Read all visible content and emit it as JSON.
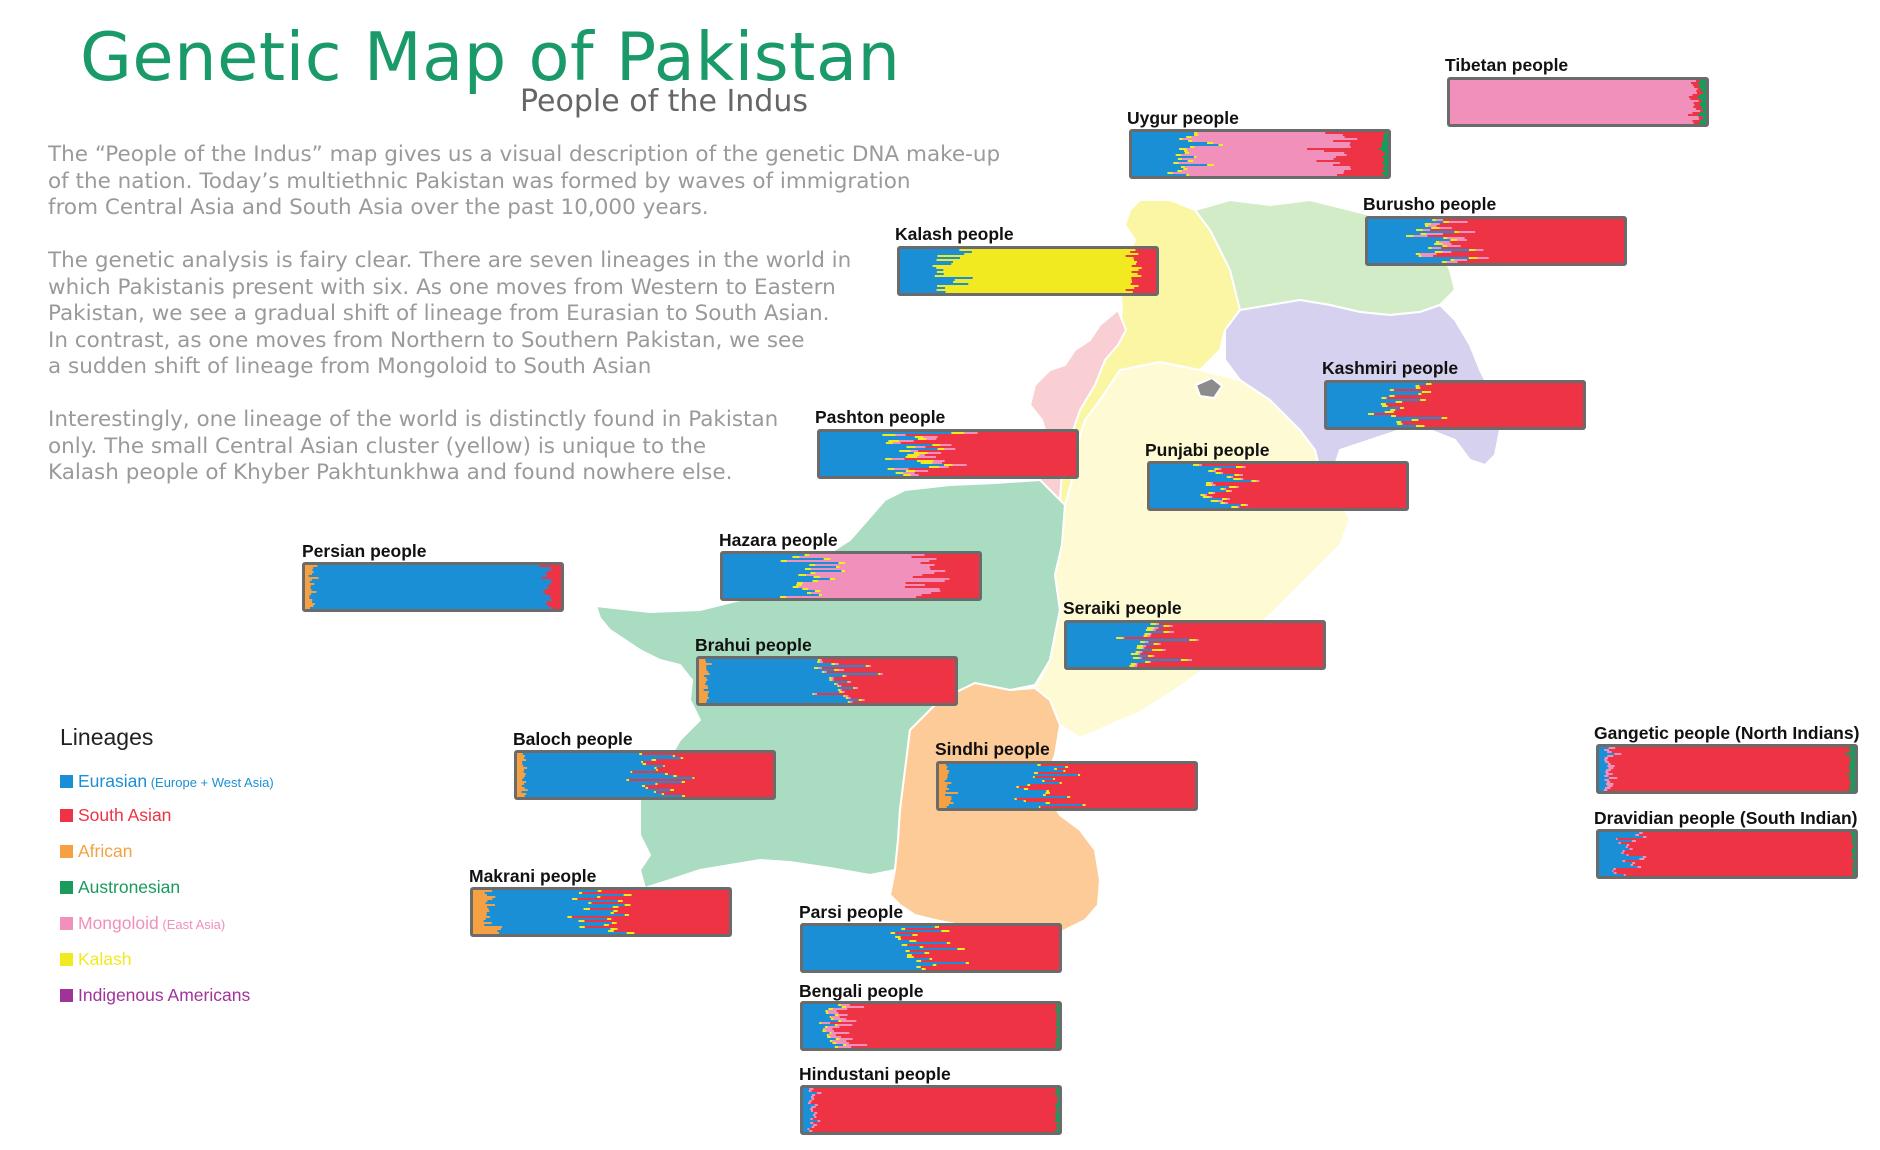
{
  "title": "Genetic Map of Pakistan",
  "subtitle": "People of the Indus",
  "paragraphs": [
    "The “People of the Indus” map gives us a visual description of the genetic DNA make-up\nof the nation. Today’s multiethnic Pakistan was formed by waves of immigration\nfrom Central Asia and South Asia over the past 10,000 years.",
    "The genetic analysis is fairy clear. There are seven lineages in the world in\nwhich Pakistanis present with six. As one moves from Western to Eastern\nPakistan, we see a gradual shift of lineage from Eurasian to South Asian.\nIn contrast, as one moves from Northern to Southern Pakistan, we see\na sudden shift of lineage from Mongoloid to South Asian",
    "Interestingly, one lineage of the world is distinctly found in Pakistan\nonly. The small Central Asian cluster (yellow) is unique to the\nKalash people of Khyber Pakhtunkhwa and found nowhere else."
  ],
  "legend": {
    "title": "Lineages",
    "items": [
      {
        "label": "Eurasian",
        "note": "(Europe + West Asia)",
        "color": "#1b8fd6"
      },
      {
        "label": "South Asian",
        "note": "",
        "color": "#ee3344"
      },
      {
        "label": "African",
        "note": "",
        "color": "#f5a043"
      },
      {
        "label": "Austronesian",
        "note": "",
        "color": "#1a9a5c"
      },
      {
        "label": "Mongoloid",
        "note": "(East Asia)",
        "color": "#f090bb"
      },
      {
        "label": "Kalash",
        "note": "",
        "color": "#f2ea20"
      },
      {
        "label": "Indigenous Americans",
        "note": "",
        "color": "#a0339a"
      }
    ]
  },
  "regions": {
    "balochistan": "#a9dcc0",
    "sindh": "#fdcb98",
    "punjab": "#fefad3",
    "kpk": "#faf6a4",
    "fata": "#f9cfd4",
    "gilgit_baltistan": "#d3ecc8",
    "kashmir": "#d5d1ee",
    "islamabad": "#8c8c8c"
  },
  "populations": [
    {
      "name": "Tibetan people",
      "eurasian": 0.0,
      "south_asian": 0.02,
      "mongoloid": 0.96,
      "kalash": 0.0,
      "african": 0.0,
      "austronesian": 0.02
    },
    {
      "name": "Uygur people",
      "eurasian": 0.22,
      "south_asian": 0.18,
      "mongoloid": 0.56,
      "kalash": 0.02,
      "african": 0.0,
      "austronesian": 0.02
    },
    {
      "name": "Burusho people",
      "eurasian": 0.24,
      "south_asian": 0.7,
      "mongoloid": 0.04,
      "kalash": 0.02,
      "african": 0.0,
      "austronesian": 0.0
    },
    {
      "name": "Kalash people",
      "eurasian": 0.18,
      "south_asian": 0.08,
      "mongoloid": 0.0,
      "kalash": 0.74,
      "african": 0.0,
      "austronesian": 0.0
    },
    {
      "name": "Kashmiri people",
      "eurasian": 0.28,
      "south_asian": 0.7,
      "mongoloid": 0.0,
      "kalash": 0.02,
      "african": 0.0,
      "austronesian": 0.0
    },
    {
      "name": "Pashton people",
      "eurasian": 0.35,
      "south_asian": 0.57,
      "mongoloid": 0.04,
      "kalash": 0.04,
      "african": 0.0,
      "austronesian": 0.0
    },
    {
      "name": "Punjabi people",
      "eurasian": 0.28,
      "south_asian": 0.69,
      "mongoloid": 0.01,
      "kalash": 0.02,
      "african": 0.0,
      "austronesian": 0.0
    },
    {
      "name": "Persian people",
      "eurasian": 0.91,
      "south_asian": 0.06,
      "mongoloid": 0.0,
      "kalash": 0.0,
      "african": 0.03,
      "austronesian": 0.0
    },
    {
      "name": "Hazara people",
      "eurasian": 0.35,
      "south_asian": 0.2,
      "mongoloid": 0.43,
      "kalash": 0.02,
      "african": 0.0,
      "austronesian": 0.0
    },
    {
      "name": "Seraiki people",
      "eurasian": 0.3,
      "south_asian": 0.67,
      "mongoloid": 0.01,
      "kalash": 0.02,
      "african": 0.0,
      "austronesian": 0.0
    },
    {
      "name": "Brahui people",
      "eurasian": 0.53,
      "south_asian": 0.42,
      "mongoloid": 0.01,
      "kalash": 0.01,
      "african": 0.03,
      "austronesian": 0.0
    },
    {
      "name": "Baloch people",
      "eurasian": 0.5,
      "south_asian": 0.46,
      "mongoloid": 0.0,
      "kalash": 0.01,
      "african": 0.03,
      "austronesian": 0.0
    },
    {
      "name": "Sindhi people",
      "eurasian": 0.35,
      "south_asian": 0.6,
      "mongoloid": 0.0,
      "kalash": 0.01,
      "african": 0.04,
      "austronesian": 0.0
    },
    {
      "name": "Gangetic people (North Indians)",
      "eurasian": 0.03,
      "south_asian": 0.93,
      "mongoloid": 0.02,
      "kalash": 0.0,
      "african": 0.0,
      "austronesian": 0.02
    },
    {
      "name": "Dravidian people (South Indian)",
      "eurasian": 0.1,
      "south_asian": 0.88,
      "mongoloid": 0.01,
      "kalash": 0.0,
      "african": 0.0,
      "austronesian": 0.01
    },
    {
      "name": "Makrani people",
      "eurasian": 0.42,
      "south_asian": 0.48,
      "mongoloid": 0.0,
      "kalash": 0.02,
      "african": 0.08,
      "austronesian": 0.0
    },
    {
      "name": "Parsi people",
      "eurasian": 0.48,
      "south_asian": 0.5,
      "mongoloid": 0.0,
      "kalash": 0.02,
      "african": 0.0,
      "austronesian": 0.0
    },
    {
      "name": "Bengali people",
      "eurasian": 0.1,
      "south_asian": 0.83,
      "mongoloid": 0.05,
      "kalash": 0.01,
      "african": 0.0,
      "austronesian": 0.01
    },
    {
      "name": "Hindustani people",
      "eurasian": 0.03,
      "south_asian": 0.95,
      "mongoloid": 0.01,
      "kalash": 0.0,
      "african": 0.0,
      "austronesian": 0.01
    }
  ]
}
